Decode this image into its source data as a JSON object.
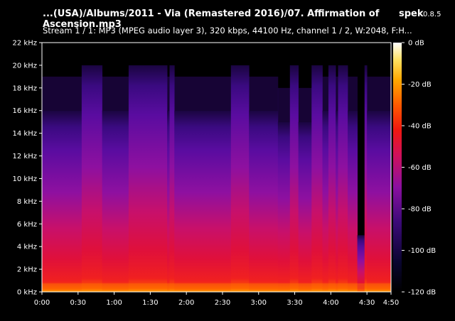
{
  "header": {
    "title": "...(USA)/Albums/2011 - Via (Remastered 2016)/07. Affirmation of Ascension.mp3",
    "app_name": "spek",
    "app_version": "0.8.5",
    "subtitle": "Stream 1 / 1: MP3 (MPEG audio layer 3), 320 kbps, 44100 Hz, channel 1 / 2, W:2048, F:H..."
  },
  "colors": {
    "background": "#000000",
    "palette": [
      "#000000",
      "#1a0033",
      "#3c0a78",
      "#7a0fa0",
      "#b0107e",
      "#e0102e",
      "#ff4a00",
      "#ffa000",
      "#ffe060",
      "#ffffff"
    ]
  },
  "chart_data": {
    "type": "heatmap",
    "title": "",
    "xlabel": "",
    "ylabel": "",
    "x_ticks": [
      "0:00",
      "0:30",
      "1:00",
      "1:30",
      "2:00",
      "2:30",
      "3:00",
      "3:30",
      "4:00",
      "4:30",
      "4:50"
    ],
    "x_tick_seconds": [
      0,
      30,
      60,
      90,
      120,
      150,
      180,
      210,
      240,
      270,
      290
    ],
    "xlim_seconds": [
      0,
      290
    ],
    "y_ticks": [
      "0 kHz",
      "2 kHz",
      "4 kHz",
      "6 kHz",
      "8 kHz",
      "10 kHz",
      "12 kHz",
      "14 kHz",
      "16 kHz",
      "18 kHz",
      "20 kHz",
      "22 kHz"
    ],
    "y_tick_khz": [
      0,
      2,
      4,
      6,
      8,
      10,
      12,
      14,
      16,
      18,
      20,
      22
    ],
    "ylim_khz": [
      0,
      22
    ],
    "colorbar_ticks": [
      "0 dB",
      "-20 dB",
      "-40 dB",
      "-60 dB",
      "-80 dB",
      "-100 dB",
      "-120 dB"
    ],
    "colorbar_db": [
      0,
      -20,
      -40,
      -60,
      -80,
      -100,
      -120
    ],
    "colorbar_range_db": [
      -120,
      0
    ],
    "grid": false,
    "legend": "right colorbar",
    "bandwidth_segments": [
      {
        "start_s": 0,
        "end_s": 33,
        "cutoff_khz": 16
      },
      {
        "start_s": 33,
        "end_s": 50,
        "cutoff_khz": 20
      },
      {
        "start_s": 50,
        "end_s": 72,
        "cutoff_khz": 16
      },
      {
        "start_s": 72,
        "end_s": 104,
        "cutoff_khz": 20
      },
      {
        "start_s": 104,
        "end_s": 106,
        "cutoff_khz": 16
      },
      {
        "start_s": 106,
        "end_s": 110,
        "cutoff_khz": 20
      },
      {
        "start_s": 110,
        "end_s": 157,
        "cutoff_khz": 16
      },
      {
        "start_s": 157,
        "end_s": 172,
        "cutoff_khz": 20
      },
      {
        "start_s": 172,
        "end_s": 196,
        "cutoff_khz": 16
      },
      {
        "start_s": 196,
        "end_s": 206,
        "cutoff_khz": 15
      },
      {
        "start_s": 206,
        "end_s": 213,
        "cutoff_khz": 20
      },
      {
        "start_s": 213,
        "end_s": 224,
        "cutoff_khz": 15
      },
      {
        "start_s": 224,
        "end_s": 233,
        "cutoff_khz": 20
      },
      {
        "start_s": 233,
        "end_s": 238,
        "cutoff_khz": 16
      },
      {
        "start_s": 238,
        "end_s": 244,
        "cutoff_khz": 20
      },
      {
        "start_s": 244,
        "end_s": 246,
        "cutoff_khz": 16
      },
      {
        "start_s": 246,
        "end_s": 254,
        "cutoff_khz": 20
      },
      {
        "start_s": 254,
        "end_s": 262,
        "cutoff_khz": 16
      },
      {
        "start_s": 262,
        "end_s": 268,
        "cutoff_khz": 5
      },
      {
        "start_s": 268,
        "end_s": 270,
        "cutoff_khz": 20
      },
      {
        "start_s": 270,
        "end_s": 290,
        "cutoff_khz": 16
      }
    ]
  }
}
